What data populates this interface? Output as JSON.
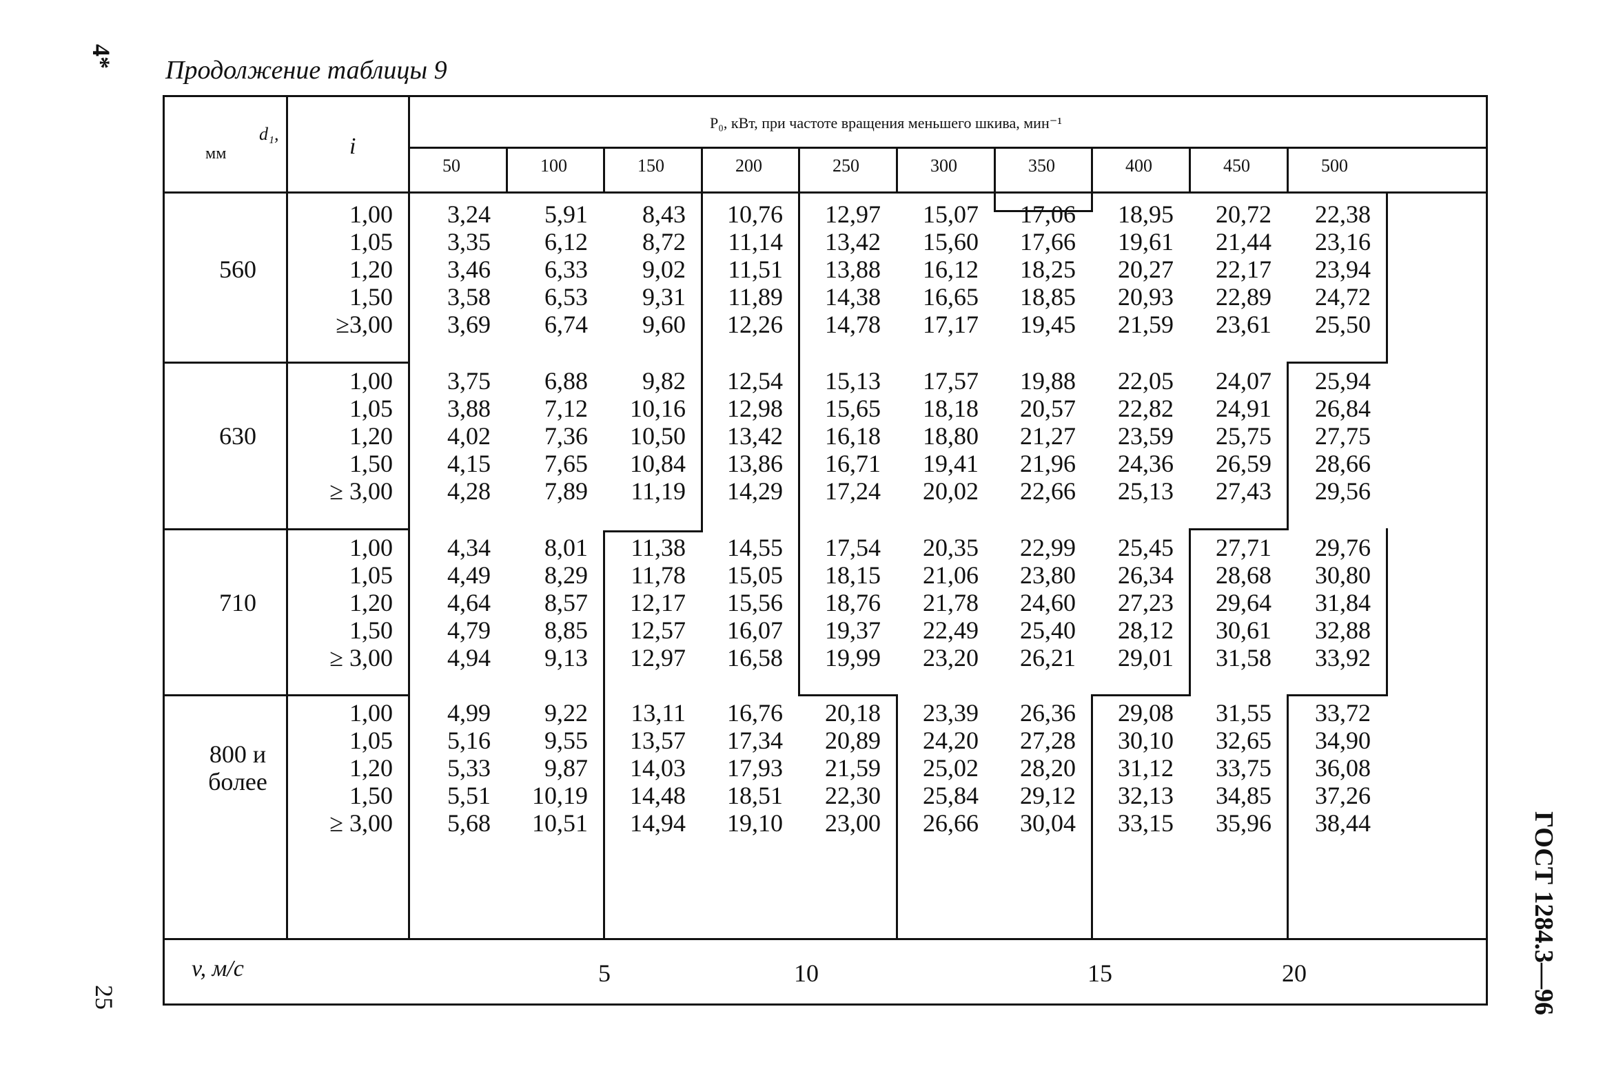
{
  "page": {
    "corner_mark": "4*",
    "caption": "Продолжение таблицы 9",
    "page_number": "25",
    "side_code": "ГОСТ 1284.3—96"
  },
  "table": {
    "col_d_header_line1": "d₁,",
    "col_d_header_line2": "мм",
    "col_i_header": "i",
    "power_header": "P₀, кВт, при частоте вращения меньшего шкива, мин⁻¹",
    "frequencies": [
      "50",
      "100",
      "150",
      "200",
      "250",
      "300",
      "350",
      "400",
      "450",
      "500"
    ],
    "groups": [
      {
        "d": [
          "560"
        ],
        "i": [
          "1,00",
          "1,05",
          "1,20",
          "1,50",
          "≥3,00"
        ],
        "rows": [
          [
            "3,24",
            "5,91",
            "8,43",
            "10,76",
            "12,97",
            "15,07",
            "17,06",
            "18,95",
            "20,72",
            "22,38"
          ],
          [
            "3,35",
            "6,12",
            "8,72",
            "11,14",
            "13,42",
            "15,60",
            "17,66",
            "19,61",
            "21,44",
            "23,16"
          ],
          [
            "3,46",
            "6,33",
            "9,02",
            "11,51",
            "13,88",
            "16,12",
            "18,25",
            "20,27",
            "22,17",
            "23,94"
          ],
          [
            "3,58",
            "6,53",
            "9,31",
            "11,89",
            "14,38",
            "16,65",
            "18,85",
            "20,93",
            "22,89",
            "24,72"
          ],
          [
            "3,69",
            "6,74",
            "9,60",
            "12,26",
            "14,78",
            "17,17",
            "19,45",
            "21,59",
            "23,61",
            "25,50"
          ]
        ]
      },
      {
        "d": [
          "630"
        ],
        "i": [
          "1,00",
          "1,05",
          "1,20",
          "1,50",
          "≥ 3,00"
        ],
        "rows": [
          [
            "3,75",
            "6,88",
            "9,82",
            "12,54",
            "15,13",
            "17,57",
            "19,88",
            "22,05",
            "24,07",
            "25,94"
          ],
          [
            "3,88",
            "7,12",
            "10,16",
            "12,98",
            "15,65",
            "18,18",
            "20,57",
            "22,82",
            "24,91",
            "26,84"
          ],
          [
            "4,02",
            "7,36",
            "10,50",
            "13,42",
            "16,18",
            "18,80",
            "21,27",
            "23,59",
            "25,75",
            "27,75"
          ],
          [
            "4,15",
            "7,65",
            "10,84",
            "13,86",
            "16,71",
            "19,41",
            "21,96",
            "24,36",
            "26,59",
            "28,66"
          ],
          [
            "4,28",
            "7,89",
            "11,19",
            "14,29",
            "17,24",
            "20,02",
            "22,66",
            "25,13",
            "27,43",
            "29,56"
          ]
        ]
      },
      {
        "d": [
          "710"
        ],
        "i": [
          "1,00",
          "1,05",
          "1,20",
          "1,50",
          "≥ 3,00"
        ],
        "rows": [
          [
            "4,34",
            "8,01",
            "11,38",
            "14,55",
            "17,54",
            "20,35",
            "22,99",
            "25,45",
            "27,71",
            "29,76"
          ],
          [
            "4,49",
            "8,29",
            "11,78",
            "15,05",
            "18,15",
            "21,06",
            "23,80",
            "26,34",
            "28,68",
            "30,80"
          ],
          [
            "4,64",
            "8,57",
            "12,17",
            "15,56",
            "18,76",
            "21,78",
            "24,60",
            "27,23",
            "29,64",
            "31,84"
          ],
          [
            "4,79",
            "8,85",
            "12,57",
            "16,07",
            "19,37",
            "22,49",
            "25,40",
            "28,12",
            "30,61",
            "32,88"
          ],
          [
            "4,94",
            "9,13",
            "12,97",
            "16,58",
            "19,99",
            "23,20",
            "26,21",
            "29,01",
            "31,58",
            "33,92"
          ]
        ]
      },
      {
        "d": [
          "800 и",
          "более"
        ],
        "i": [
          "1,00",
          "1,05",
          "1,20",
          "1,50",
          "≥ 3,00"
        ],
        "rows": [
          [
            "4,99",
            "9,22",
            "13,11",
            "16,76",
            "20,18",
            "23,39",
            "26,36",
            "29,08",
            "31,55",
            "33,72"
          ],
          [
            "5,16",
            "9,55",
            "13,57",
            "17,34",
            "20,89",
            "24,20",
            "27,28",
            "30,10",
            "32,65",
            "34,90"
          ],
          [
            "5,33",
            "9,87",
            "14,03",
            "17,93",
            "21,59",
            "25,02",
            "28,20",
            "31,12",
            "33,75",
            "36,08"
          ],
          [
            "5,51",
            "10,19",
            "14,48",
            "18,51",
            "22,30",
            "25,84",
            "29,12",
            "32,13",
            "34,85",
            "37,26"
          ],
          [
            "5,68",
            "10,51",
            "14,94",
            "19,10",
            "23,00",
            "26,66",
            "30,04",
            "33,15",
            "35,96",
            "38,44"
          ]
        ]
      }
    ],
    "v_label": "v,  м/с",
    "v_ticks": [
      "5",
      "10",
      "15",
      "20"
    ]
  }
}
